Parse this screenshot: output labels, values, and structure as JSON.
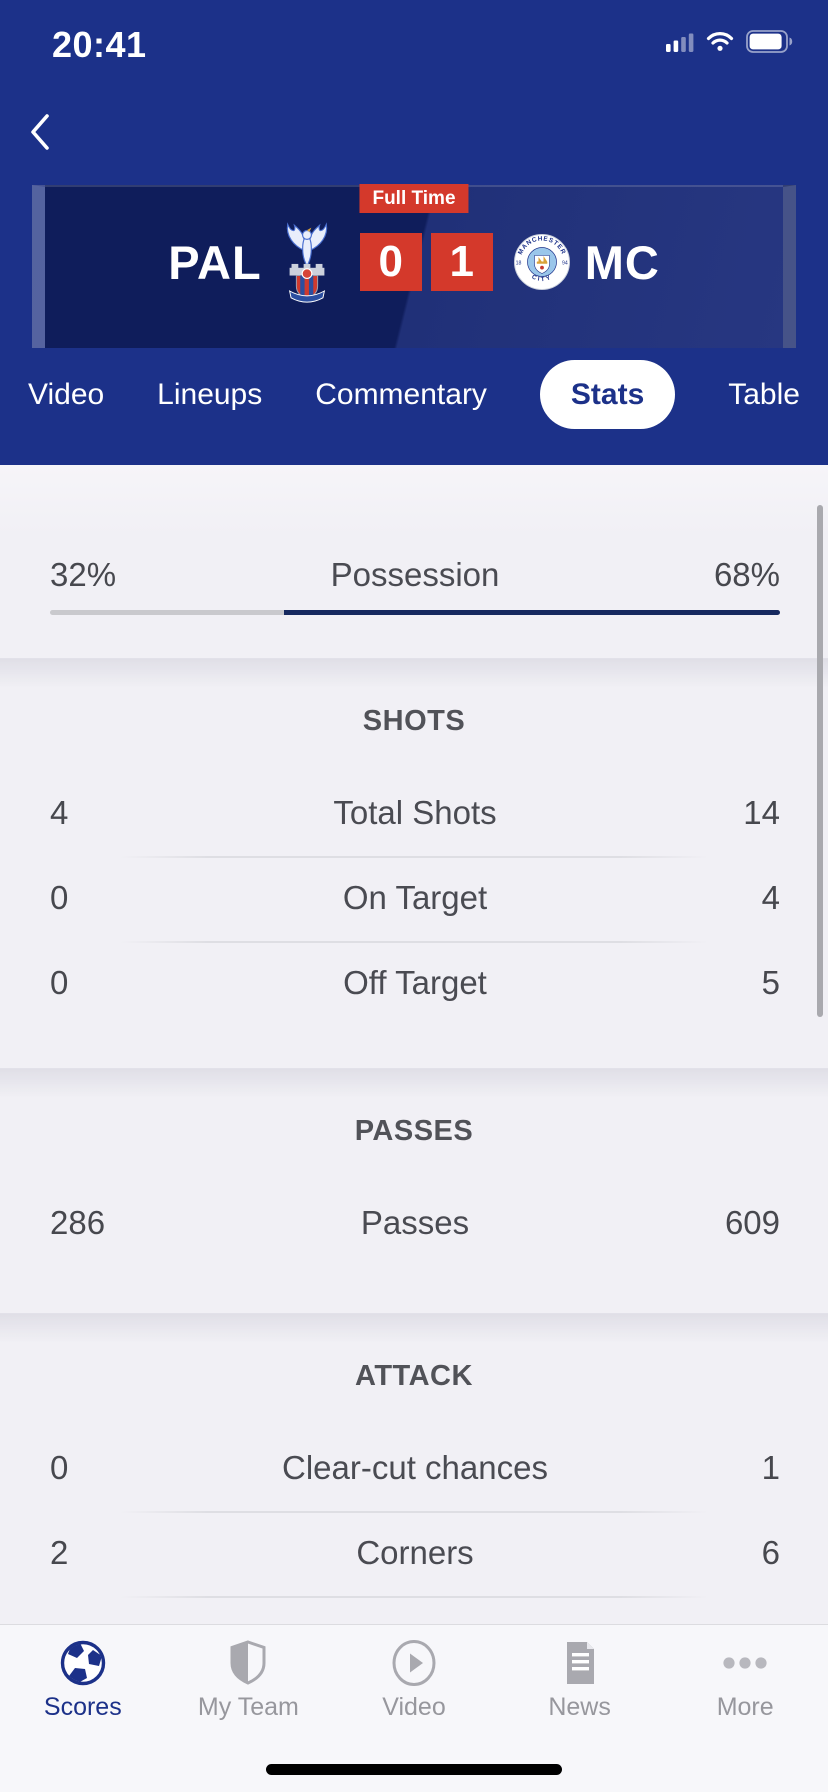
{
  "status_bar": {
    "time": "20:41",
    "signal_icon": "cellular-signal",
    "signal_bars_filled": 2,
    "signal_bars_total": 4,
    "wifi_icon": "wifi",
    "battery_icon": "battery",
    "battery_level_pct": 92
  },
  "match_header": {
    "back_icon": "chevron-left",
    "status_badge": "Full Time",
    "home_team": {
      "abbr": "PAL",
      "crest_icon": "crystal-palace-crest"
    },
    "away_team": {
      "abbr": "MC",
      "crest_icon": "manchester-city-crest"
    },
    "score": {
      "home": "0",
      "away": "1"
    }
  },
  "tabs": [
    {
      "label": "Video",
      "active": false
    },
    {
      "label": "Lineups",
      "active": false
    },
    {
      "label": "Commentary",
      "active": false
    },
    {
      "label": "Stats",
      "active": true
    },
    {
      "label": "Table",
      "active": false
    }
  ],
  "stats": {
    "possession": {
      "home": "32%",
      "label": "Possession",
      "away": "68%",
      "home_pct": 32,
      "away_pct": 68
    },
    "sections": [
      {
        "title": "SHOTS",
        "rows": [
          {
            "home": "4",
            "label": "Total Shots",
            "away": "14"
          },
          {
            "home": "0",
            "label": "On Target",
            "away": "4"
          },
          {
            "home": "0",
            "label": "Off Target",
            "away": "5"
          }
        ]
      },
      {
        "title": "PASSES",
        "rows": [
          {
            "home": "286",
            "label": "Passes",
            "away": "609"
          }
        ]
      },
      {
        "title": "ATTACK",
        "rows": [
          {
            "home": "0",
            "label": "Clear-cut chances",
            "away": "1"
          },
          {
            "home": "2",
            "label": "Corners",
            "away": "6"
          }
        ]
      }
    ]
  },
  "bottom_nav": {
    "items": [
      {
        "label": "Scores",
        "icon": "football-icon",
        "active": true
      },
      {
        "label": "My Team",
        "icon": "shield-icon",
        "active": false
      },
      {
        "label": "Video",
        "icon": "play-circle-icon",
        "active": false
      },
      {
        "label": "News",
        "icon": "news-icon",
        "active": false
      },
      {
        "label": "More",
        "icon": "ellipsis-icon",
        "active": false
      }
    ]
  },
  "colors": {
    "header_blue": "#1c3189",
    "scoreboard_navy": "#0f1d5b",
    "badge_red": "#d4392b",
    "score_box_red": "#d4392b",
    "possession_home_bar": "#c9c9cd",
    "possession_away_bar": "#16295f",
    "content_bg": "#f1f0f5",
    "active_nav": "#1c3189",
    "inactive_grey": "#97979d"
  }
}
